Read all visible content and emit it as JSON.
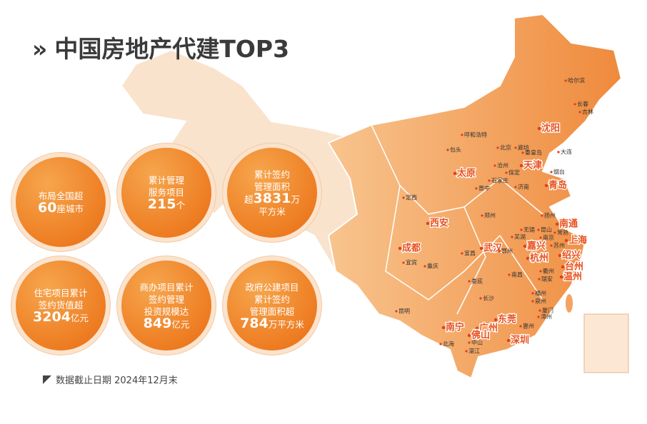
{
  "header": {
    "marker": "»",
    "title": "中国房地产代建TOP3"
  },
  "stats": [
    {
      "lines": [
        [
          "布局全国超"
        ],
        [
          "60",
          "座城市"
        ]
      ]
    },
    {
      "lines": [
        [
          "累计管理"
        ],
        [
          "服务项目"
        ],
        [
          "215",
          "个"
        ]
      ]
    },
    {
      "lines": [
        [
          "累计签约"
        ],
        [
          "管理面积"
        ],
        [
          "超",
          "3831",
          "万"
        ],
        [
          "平方米"
        ]
      ]
    },
    {
      "lines": [
        [
          "住宅项目累计"
        ],
        [
          "签约货值超"
        ],
        [
          "3204",
          "亿元"
        ]
      ]
    },
    {
      "lines": [
        [
          "商办项目累计"
        ],
        [
          "签约管理"
        ],
        [
          "投资规模达"
        ],
        [
          "849",
          "亿元"
        ]
      ]
    },
    {
      "lines": [
        [
          "政府公建项目"
        ],
        [
          "累计签约"
        ],
        [
          "管理面积超"
        ],
        [
          "784",
          "万平方米"
        ]
      ]
    }
  ],
  "footnote": "数据截止日期 2024年12月末",
  "map": {
    "cities": [
      "哈尔滨",
      "长春",
      "吉林",
      "沈阳",
      "呼和浩特",
      "包头",
      "北京",
      "廊坊",
      "秦皇岛",
      "大连",
      "天津",
      "沧州",
      "保定",
      "太原",
      "石家庄",
      "烟台",
      "青岛",
      "晋中",
      "济南",
      "定西",
      "郑州",
      "西安",
      "扬州",
      "南通",
      "无锡",
      "昆山",
      "常熟",
      "芜湖",
      "南京",
      "上海",
      "苏州",
      "成都",
      "嘉兴",
      "武汉",
      "宜昌",
      "鄂州",
      "绍兴",
      "杭州",
      "宜宾",
      "重庆",
      "台州",
      "衢州",
      "南昌",
      "温州",
      "瑞安",
      "娄底",
      "福州",
      "长沙",
      "泉州",
      "昆明",
      "厦门",
      "漳州",
      "东莞",
      "惠州",
      "南宁",
      "广州",
      "佛山",
      "深圳",
      "北海",
      "中山",
      "湛江"
    ]
  }
}
